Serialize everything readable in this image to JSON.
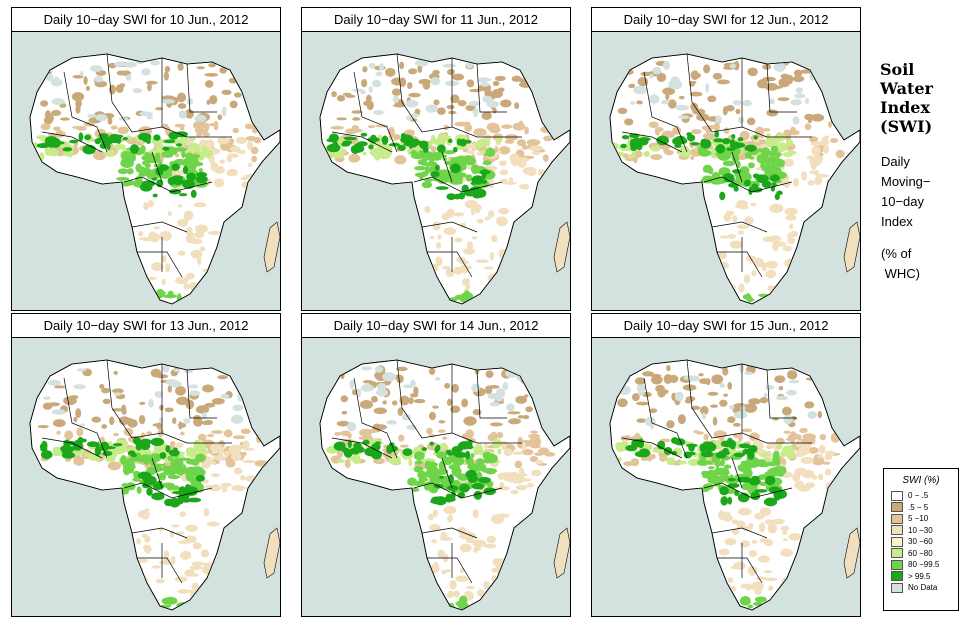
{
  "panels": [
    {
      "title": "Daily 10−day SWI for  10 Jun., 2012"
    },
    {
      "title": "Daily 10−day SWI for  11 Jun., 2012"
    },
    {
      "title": "Daily 10−day SWI for  12 Jun., 2012"
    },
    {
      "title": "Daily 10−day SWI for  13 Jun., 2012"
    },
    {
      "title": "Daily 10−day SWI for  14 Jun., 2012"
    },
    {
      "title": "Daily 10−day SWI for  15 Jun., 2012"
    }
  ],
  "side": {
    "title_lines": [
      "Soil",
      "Water",
      "Index",
      "(SWI)"
    ],
    "sub_lines": [
      "Daily",
      "Moving−",
      "10−day",
      "Index"
    ],
    "unit_lines": [
      "(% of",
      " WHC)"
    ]
  },
  "legend": {
    "title": "SWI (%)",
    "items": [
      {
        "label": "0 − .5",
        "color": "#ffffff"
      },
      {
        "label": ".5 − 5",
        "color": "#c9a97a"
      },
      {
        "label": "5 −10",
        "color": "#e3c49a"
      },
      {
        "label": "10 −30",
        "color": "#f1dfbd"
      },
      {
        "label": "30 −60",
        "color": "#f7f4c6"
      },
      {
        "label": "60 −80",
        "color": "#c8ec8a"
      },
      {
        "label": "80 −99.5",
        "color": "#6fd44a"
      },
      {
        "label": "> 99.5",
        "color": "#1aa81a"
      },
      {
        "label": "No Data",
        "color": "#d3e2de"
      }
    ]
  },
  "colors": {
    "sea": "#d3e2de",
    "land": "#ffffff",
    "no_data": "#d3e2de",
    "border": "#000000"
  }
}
